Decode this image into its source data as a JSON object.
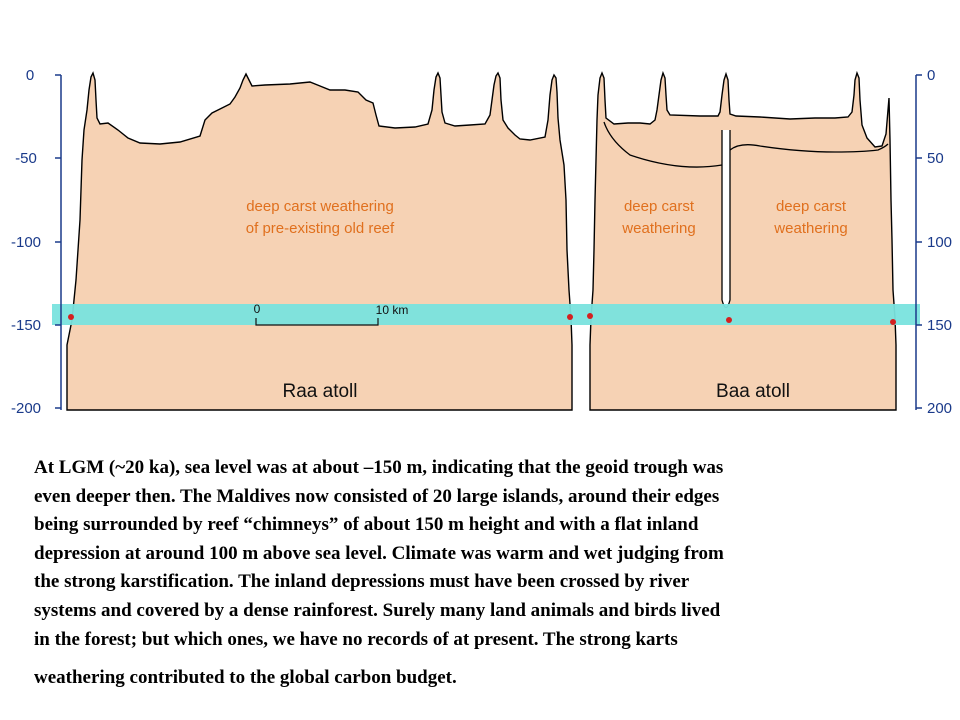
{
  "diagram": {
    "left_axis": {
      "ticks": [
        "0",
        "-50",
        "-100",
        "-150",
        "-200"
      ]
    },
    "right_axis": {
      "ticks": [
        "0",
        "50",
        "100",
        "150",
        "200"
      ]
    },
    "raa": {
      "name": "Raa atoll",
      "weathering_label": [
        "deep carst weathering",
        "of pre-existing old reef"
      ],
      "scale_bar": {
        "start": "0",
        "end": "10 km"
      }
    },
    "baa": {
      "name": "Baa atoll",
      "weathering_left": [
        "deep carst",
        "weathering"
      ],
      "weathering_right": [
        "deep carst",
        "weathering"
      ]
    },
    "colors": {
      "reef_fill": "#f6d2b4",
      "sea_level_band": "#79e3de",
      "axis": "#1a3a8a",
      "label_orange": "#e0701e",
      "marker_red": "#d42020"
    }
  },
  "caption": {
    "lines": [
      "At LGM (~20 ka), sea level was at about –150 m, indicating that the geoid trough was",
      "even deeper then. The Maldives now consisted of 20 large islands, around their edges",
      "being surrounded by reef “chimneys” of about 150 m height and with a flat inland",
      "depression at around 100 m above sea level. Climate was warm and wet judging from",
      "the strong karstification. The inland depressions must have been crossed by river",
      "systems and covered by a dense rainforest. Surely many land animals and birds lived",
      "in the forest; but which ones, we have no records of at present. The strong karts",
      "weathering contributed to the global carbon budget."
    ]
  }
}
